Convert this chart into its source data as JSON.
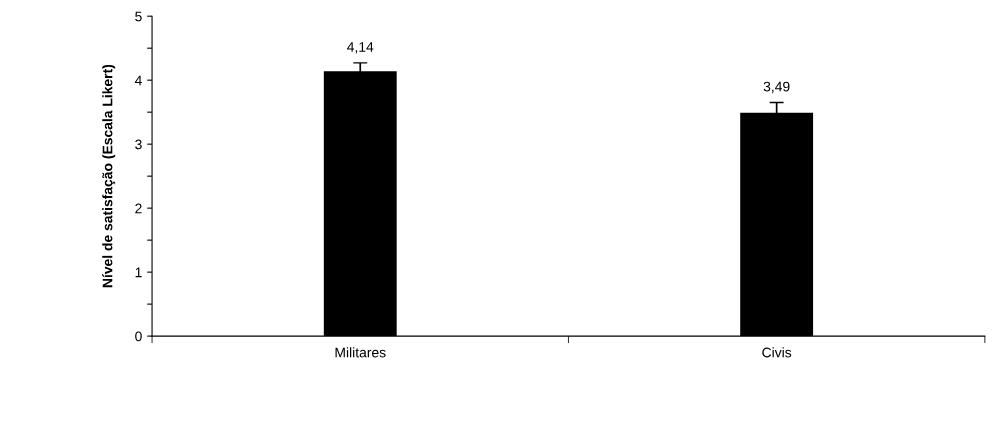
{
  "chart_data": {
    "type": "bar",
    "ylabel": "Nível de satisfação (Escala Likert)",
    "categories": [
      "Militares",
      "Civis"
    ],
    "values": [
      4.14,
      3.49
    ],
    "errors": [
      0.13,
      0.16
    ],
    "color": "#000000",
    "value_labels": [
      "4,14",
      "3,49"
    ],
    "ylim": [
      0,
      5
    ],
    "yticks": [
      0,
      {
        "value": 0.5,
        "label": null
      },
      1,
      {
        "value": 1.5,
        "label": null
      },
      2,
      {
        "value": 2.5,
        "label": null
      },
      3,
      {
        "value": 3.5,
        "label": null
      },
      4,
      {
        "value": 4.5,
        "label": null
      },
      5
    ],
    "grid": false,
    "legend": false
  }
}
